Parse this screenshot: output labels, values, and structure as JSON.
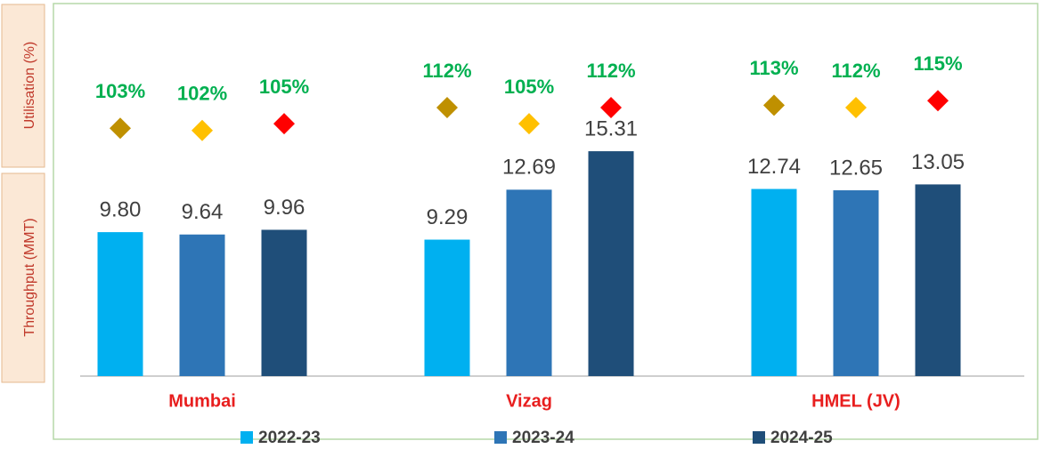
{
  "chart_data": {
    "type": "bar",
    "ylabel": "Throughput (MMT)",
    "y2label": "Utilisation (%)",
    "categories": [
      "Mumbai",
      "Vizag",
      "HMEL (JV)"
    ],
    "ylim": [
      0,
      25
    ],
    "y2lim": [
      -5,
      155
    ],
    "series": [
      {
        "name": "2022-23",
        "color": "#00b0f0",
        "values": [
          9.8,
          9.29,
          12.74
        ],
        "value_labels": [
          "9.80",
          "9.29",
          "12.74"
        ],
        "utilisation": [
          103,
          112,
          113
        ],
        "utilisation_labels": [
          "103%",
          "112%",
          "113%"
        ],
        "marker_color": "#bf9000"
      },
      {
        "name": "2023-24",
        "color": "#2e75b6",
        "values": [
          9.64,
          12.69,
          12.65
        ],
        "value_labels": [
          "9.64",
          "12.69",
          "12.65"
        ],
        "utilisation": [
          102,
          105,
          112
        ],
        "utilisation_labels": [
          "102%",
          "105%",
          "112%"
        ],
        "marker_color": "#ffc000"
      },
      {
        "name": "2024-25",
        "color": "#1f4e79",
        "values": [
          9.96,
          15.31,
          13.05
        ],
        "value_labels": [
          "9.96",
          "15.31",
          "13.05"
        ],
        "utilisation": [
          105,
          112,
          115
        ],
        "utilisation_labels": [
          "105%",
          "112%",
          "115%"
        ],
        "marker_color": "#ff0000"
      }
    ]
  }
}
